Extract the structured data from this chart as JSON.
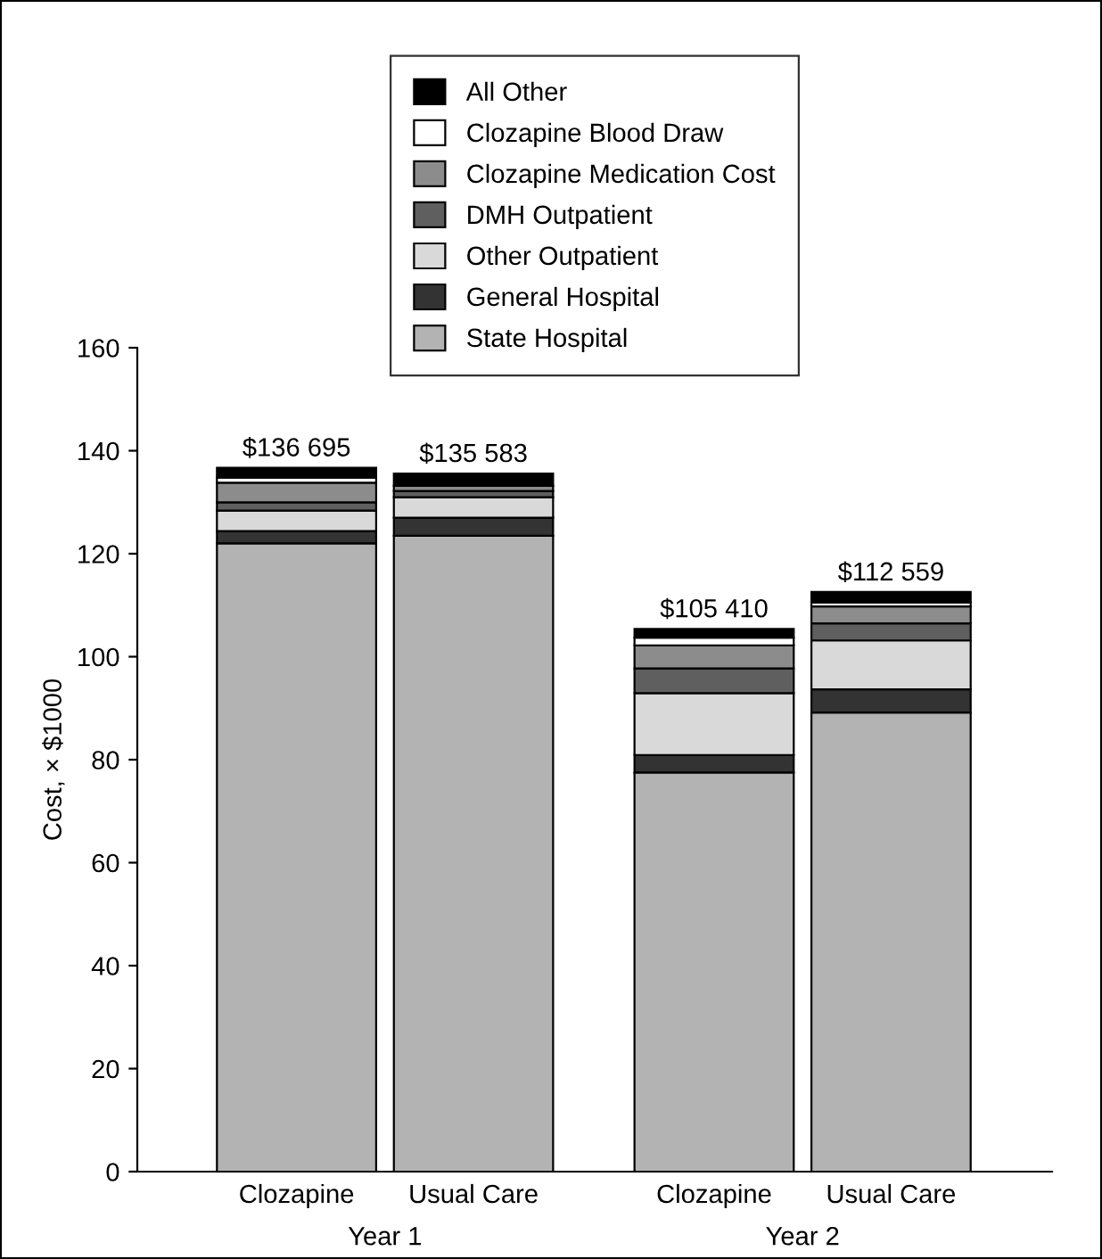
{
  "chart_data": {
    "type": "bar",
    "stacked": true,
    "ylabel": "Cost, × $1000",
    "categories": [
      "Clozapine",
      "Usual Care",
      "Clozapine",
      "Usual Care"
    ],
    "series": [
      {
        "name": "State Hospital",
        "color": "#b3b3b3",
        "values": [
          121.995,
          123.483,
          77.51,
          89.159
        ]
      },
      {
        "name": "General Hospital",
        "color": "#333333",
        "values": [
          2.4,
          3.5,
          3.4,
          4.5
        ]
      },
      {
        "name": "Other Outpatient",
        "color": "#d9d9d9",
        "values": [
          4.0,
          4.0,
          12.0,
          9.5
        ]
      },
      {
        "name": "DMH Outpatient",
        "color": "#5f5f5f",
        "values": [
          1.6,
          1.2,
          4.8,
          3.3
        ]
      },
      {
        "name": "Clozapine Medication Cost",
        "color": "#8c8c8c",
        "values": [
          3.8,
          1.0,
          4.5,
          3.3
        ]
      },
      {
        "name": "Clozapine Blood Draw",
        "color": "#ffffff",
        "values": [
          1.0,
          0,
          1.5,
          0.8
        ]
      },
      {
        "name": "All Other",
        "color": "#000000",
        "values": [
          1.9,
          2.4,
          1.7,
          2.0
        ]
      }
    ],
    "totals": [
      "$136 695",
      "$135 583",
      "$105 410",
      "$112 559"
    ],
    "annotations": [
      "Year 1",
      "Year 2"
    ],
    "ylim": [
      0,
      160
    ],
    "yticks": [
      0,
      20,
      40,
      60,
      80,
      100,
      120,
      140,
      160
    ],
    "grid": false,
    "legend": "top"
  }
}
